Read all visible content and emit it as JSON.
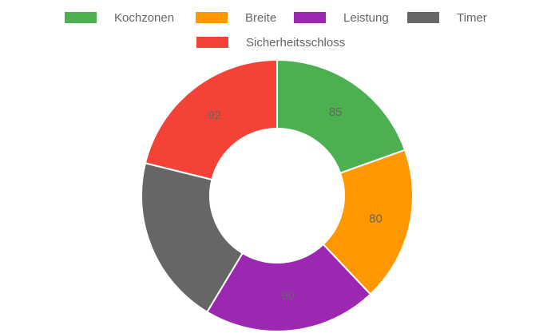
{
  "chart_data": {
    "type": "doughnut",
    "categories": [
      "Kochzonen",
      "Breite",
      "Leistung",
      "Timer",
      "Sicherheitsschloss"
    ],
    "values": [
      85,
      80,
      90,
      88,
      92
    ],
    "colors": [
      "#4caf50",
      "#ff9800",
      "#9c27b0",
      "#666666",
      "#f44336"
    ],
    "legend": "top"
  }
}
